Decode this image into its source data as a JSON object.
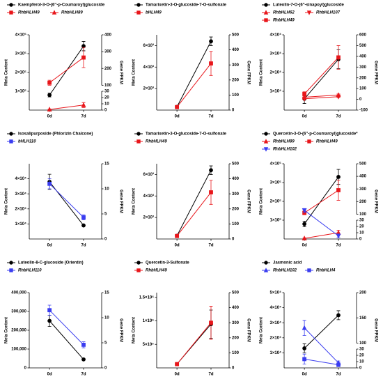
{
  "chart_data": [
    {
      "type": "line",
      "categories": [
        "0d",
        "7d"
      ],
      "y_label": "Meta Content",
      "y2_label": "Gene FPKM",
      "ylim": [
        0,
        400000
      ],
      "yticks": [
        {
          "value": 100000,
          "label": "1×10⁵"
        },
        {
          "value": 200000,
          "label": "2×10⁵"
        },
        {
          "value": 300000,
          "label": "3×10⁵"
        },
        {
          "value": 400000,
          "label": "4×10⁵"
        }
      ],
      "y2segments": [
        {
          "lim": [
            0,
            30
          ],
          "ticks": [
            0,
            10,
            20,
            30
          ]
        },
        {
          "lim": [
            100,
            400
          ],
          "ticks": [
            100,
            200,
            300,
            400
          ]
        }
      ],
      "series": [
        {
          "name": "Kaempferol-3-O-(6''-p-Coumaroyl)glucoside",
          "color": "#000000",
          "marker": "circle",
          "axis": "y",
          "values": [
            80000,
            340000
          ],
          "errors": [
            10000,
            25000
          ]
        },
        {
          "name": "RhbHLH49",
          "color": "#e8161b",
          "marker": "square",
          "axis": "y2",
          "values": [
            115,
            265
          ],
          "errors": [
            15,
            60
          ]
        },
        {
          "name": "RhbHLH89",
          "color": "#e8161b",
          "marker": "triangle",
          "axis": "y2",
          "values": [
            1,
            8
          ],
          "errors": [
            0.5,
            4
          ]
        }
      ]
    },
    {
      "type": "line",
      "categories": [
        "0d",
        "7d"
      ],
      "y_label": "Meta Content",
      "y2_label": "Gene FPKM",
      "ylim": [
        0,
        7000
      ],
      "yticks": [
        {
          "value": 2000,
          "label": "2×10³"
        },
        {
          "value": 4000,
          "label": "4×10³"
        },
        {
          "value": 6000,
          "label": "6×10³"
        }
      ],
      "y2segments": [
        {
          "lim": [
            0,
            500
          ],
          "ticks": [
            0,
            100,
            200,
            300,
            400,
            500
          ]
        }
      ],
      "series": [
        {
          "name": "Tamarixetin-3-O-glucoside-7-O-sulfonate",
          "color": "#000000",
          "marker": "circle",
          "axis": "y",
          "values": [
            300,
            6400
          ],
          "errors": [
            50,
            400
          ]
        },
        {
          "name": "bHLH49",
          "color": "#e8161b",
          "marker": "square",
          "axis": "y2",
          "values": [
            20,
            310
          ],
          "errors": [
            3,
            80
          ]
        }
      ]
    },
    {
      "type": "line",
      "categories": [
        "0d",
        "7d"
      ],
      "y_label": "Meta Content",
      "y2_label": "Gene FPKM",
      "ylim": [
        0,
        40000
      ],
      "yticks": [
        {
          "value": 10000,
          "label": "1×10⁴"
        },
        {
          "value": 20000,
          "label": "2×10⁴"
        },
        {
          "value": 30000,
          "label": "3×10⁴"
        },
        {
          "value": 40000,
          "label": "4×10⁴"
        }
      ],
      "y2segments": [
        {
          "lim": [
            -100,
            600
          ],
          "ticks": [
            -100,
            0,
            100,
            200,
            300,
            400,
            500,
            600
          ]
        }
      ],
      "series": [
        {
          "name": "Luteolin-7-O-(6''-sinapoyl)glucoside",
          "color": "#000000",
          "marker": "circle",
          "axis": "y",
          "values": [
            6000,
            27000
          ],
          "errors": [
            2500,
            5000
          ]
        },
        {
          "name": "RhbHLH62",
          "color": "#e8161b",
          "marker": "triangle",
          "axis": "y2",
          "values": [
            20,
            40
          ],
          "errors": [
            10,
            10
          ]
        },
        {
          "name": "RhbHLH107",
          "color": "#e8161b",
          "marker": "triangle-down",
          "axis": "y2",
          "values": [
            5,
            25
          ],
          "errors": [
            8,
            8
          ]
        },
        {
          "name": "RhbHLH49",
          "color": "#e8161b",
          "marker": "square",
          "axis": "y2",
          "values": [
            50,
            390
          ],
          "errors": [
            20,
            110
          ]
        }
      ]
    },
    {
      "type": "line",
      "categories": [
        "0d",
        "7d"
      ],
      "y_label": "Meta Content",
      "y2_label": "Gene FPKM",
      "ylim": [
        0,
        50000
      ],
      "yticks": [
        {
          "value": 10000,
          "label": "1×10⁴"
        },
        {
          "value": 20000,
          "label": "2×10⁴"
        },
        {
          "value": 30000,
          "label": "3×10⁴"
        },
        {
          "value": 40000,
          "label": "4×10⁴"
        }
      ],
      "y2segments": [
        {
          "lim": [
            0,
            15
          ],
          "ticks": [
            0,
            5,
            10,
            15
          ]
        }
      ],
      "series": [
        {
          "name": "Isosalipurposide (Phlorizin Chalcone)",
          "color": "#000000",
          "marker": "circle",
          "axis": "y",
          "values": [
            38000,
            9000
          ],
          "errors": [
            5000,
            500
          ]
        },
        {
          "name": "bHLH110",
          "color": "#3a3df0",
          "marker": "square",
          "axis": "y2",
          "values": [
            11,
            4.3
          ],
          "errors": [
            1,
            0.5
          ]
        }
      ]
    },
    {
      "type": "line",
      "categories": [
        "0d",
        "7d"
      ],
      "y_label": "Meta Content",
      "y2_label": "Gene FPKM",
      "ylim": [
        0,
        7000
      ],
      "yticks": [
        {
          "value": 2000,
          "label": "2×10³"
        },
        {
          "value": 4000,
          "label": "4×10³"
        },
        {
          "value": 6000,
          "label": "6×10³"
        }
      ],
      "y2segments": [
        {
          "lim": [
            0,
            500
          ],
          "ticks": [
            0,
            100,
            200,
            300,
            400,
            500
          ]
        }
      ],
      "series": [
        {
          "name": "Tamarixetin-3-O-glucoside-7-O-sulfonate",
          "color": "#000000",
          "marker": "circle",
          "axis": "y",
          "values": [
            300,
            6400
          ],
          "errors": [
            50,
            400
          ]
        },
        {
          "name": "RhbHLH49",
          "color": "#e8161b",
          "marker": "square",
          "axis": "y2",
          "values": [
            20,
            310
          ],
          "errors": [
            3,
            80
          ]
        }
      ]
    },
    {
      "type": "line",
      "categories": [
        "0d",
        "7d"
      ],
      "y_label": "Meta Content",
      "y2_label": "Gene FPKM",
      "ylim": [
        0,
        400000
      ],
      "yticks": [
        {
          "value": 100000,
          "label": "1×10⁵"
        },
        {
          "value": 200000,
          "label": "2×10⁵"
        },
        {
          "value": 300000,
          "label": "3×10⁵"
        },
        {
          "value": 400000,
          "label": "4×10⁵"
        }
      ],
      "y2segments": [
        {
          "lim": [
            0,
            30
          ],
          "ticks": [
            0,
            10,
            20,
            30
          ]
        },
        {
          "lim": [
            100,
            500
          ],
          "ticks": [
            100,
            200,
            300,
            400,
            500
          ]
        }
      ],
      "series": [
        {
          "name": "Quercetin-3-O-(6''-p-Coumaroyl)glucoside*",
          "color": "#000000",
          "marker": "circle",
          "axis": "y",
          "values": [
            80000,
            330000
          ],
          "errors": [
            15000,
            40000
          ]
        },
        {
          "name": "RhbHLH89",
          "color": "#e8161b",
          "marker": "triangle",
          "axis": "y2",
          "values": [
            1,
            10
          ],
          "errors": [
            0.5,
            4
          ]
        },
        {
          "name": "RhbHLH49",
          "color": "#e8161b",
          "marker": "square",
          "axis": "y2",
          "values": [
            110,
            290
          ],
          "errors": [
            15,
            80
          ]
        },
        {
          "name": "RhbHLH102",
          "color": "#3a3df0",
          "marker": "triangle-down",
          "axis": "y2",
          "values": [
            130,
            5
          ],
          "errors": [
            15,
            3
          ]
        }
      ]
    },
    {
      "type": "line",
      "categories": [
        "0d",
        "7d"
      ],
      "y_label": "Meta Content",
      "y2_label": "Gene FPKM",
      "ylim": [
        0,
        400000
      ],
      "yticks": [
        0,
        {
          "value": 100000,
          "label": "100,000"
        },
        {
          "value": 200000,
          "label": "200,000"
        },
        {
          "value": 300000,
          "label": "300,000"
        },
        {
          "value": 400000,
          "label": "400,000"
        }
      ],
      "y2segments": [
        {
          "lim": [
            0,
            15
          ],
          "ticks": [
            0,
            5,
            10,
            15
          ]
        }
      ],
      "series": [
        {
          "name": "Luteolin-8-C-glucoside (Orientin)",
          "color": "#000000",
          "marker": "circle",
          "axis": "y",
          "values": [
            250000,
            45000
          ],
          "errors": [
            30000,
            3000
          ]
        },
        {
          "name": "RhbHLH110",
          "color": "#3a3df0",
          "marker": "square",
          "axis": "y2",
          "values": [
            11.5,
            4.6
          ],
          "errors": [
            1,
            0.6
          ]
        }
      ]
    },
    {
      "type": "line",
      "categories": [
        "0d",
        "7d"
      ],
      "y_label": "Meta Content",
      "y2_label": "Gene FPKM",
      "ylim": [
        0,
        1600000
      ],
      "yticks": [
        {
          "value": 500000,
          "label": "5×10⁵"
        },
        {
          "value": 1000000,
          "label": "1×10⁶"
        },
        {
          "value": 1500000,
          "label": "1.5×10⁶"
        }
      ],
      "y2segments": [
        {
          "lim": [
            0,
            500
          ],
          "ticks": [
            0,
            100,
            200,
            300,
            400,
            500
          ]
        }
      ],
      "series": [
        {
          "name": "Quercetin-3-Sulfonate",
          "color": "#000000",
          "marker": "circle",
          "axis": "y",
          "values": [
            80000,
            930000
          ],
          "errors": [
            10000,
            300000
          ]
        },
        {
          "name": "RhbHLH49",
          "color": "#e8161b",
          "marker": "square",
          "axis": "y2",
          "values": [
            25,
            300
          ],
          "errors": [
            3,
            110
          ]
        }
      ]
    },
    {
      "type": "line",
      "categories": [
        "0d",
        "7d"
      ],
      "y_label": "Meta Content",
      "y2_label": "Gene FPKM",
      "ylim": [
        0,
        50000
      ],
      "yticks": [
        {
          "value": 10000,
          "label": "1×10⁴"
        },
        {
          "value": 20000,
          "label": "2×10⁴"
        },
        {
          "value": 30000,
          "label": "3×10⁴"
        },
        {
          "value": 40000,
          "label": "4×10⁴"
        },
        {
          "value": 50000,
          "label": "5×10⁴"
        }
      ],
      "y2segments": [
        {
          "lim": [
            0,
            30
          ],
          "ticks": [
            0,
            10,
            20,
            30
          ]
        },
        {
          "lim": [
            100,
            200
          ],
          "ticks": [
            100,
            150,
            200
          ]
        }
      ],
      "series": [
        {
          "name": "Jasmonic acid",
          "color": "#000000",
          "marker": "circle",
          "axis": "y",
          "values": [
            13000,
            35000
          ],
          "errors": [
            3000,
            3000
          ]
        },
        {
          "name": "RhbHLH102",
          "color": "#3a3df0",
          "marker": "triangle",
          "axis": "y2",
          "values": [
            130,
            8
          ],
          "errors": [
            15,
            3
          ]
        },
        {
          "name": "RhbHLH4",
          "color": "#3a3df0",
          "marker": "square",
          "axis": "y2",
          "values": [
            14,
            5
          ],
          "errors": [
            8,
            3
          ]
        }
      ]
    }
  ]
}
